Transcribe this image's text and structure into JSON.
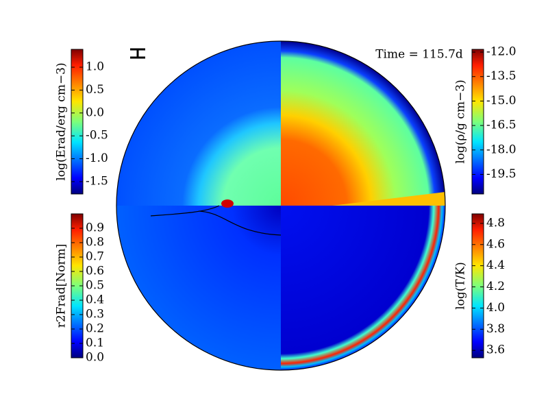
{
  "annotation": "Time = 115.7d",
  "colorbars": [
    {
      "label": "log(Erad/erg cm−3)",
      "lim": [
        -1.77,
        1.39
      ],
      "ticks": [
        {
          "value": 1.0,
          "label": "1.0"
        },
        0.5,
        {
          "value": 0,
          "label": "0.0"
        },
        -0.5,
        {
          "value": -1.0,
          "label": "-1.0"
        },
        -1.5
      ]
    },
    {
      "label": "log(ρ/g cm−3)",
      "lim": [
        -20.7,
        -11.83
      ],
      "ticks": [
        {
          "value": -12.0,
          "label": "-12.0"
        },
        -13.5,
        {
          "value": -15.0,
          "label": "-15.0"
        },
        -16.5,
        {
          "value": -18.0,
          "label": "-18.0"
        },
        -19.5
      ]
    },
    {
      "label": "r2Frad[Norm]",
      "lim": [
        0,
        1.0
      ],
      "ticks": [
        0.9,
        0.8,
        0.7,
        0.6,
        0.5,
        0.4,
        0.3,
        0.2,
        0.1,
        {
          "value": 0,
          "label": "0.0"
        }
      ]
    },
    {
      "label": "log(T/K)",
      "lim": [
        3.53,
        4.89
      ],
      "ticks": [
        4.8,
        4.6,
        4.4,
        4.2,
        {
          "value": 4.0,
          "label": "4.0"
        },
        3.8,
        3.6
      ]
    }
  ]
}
